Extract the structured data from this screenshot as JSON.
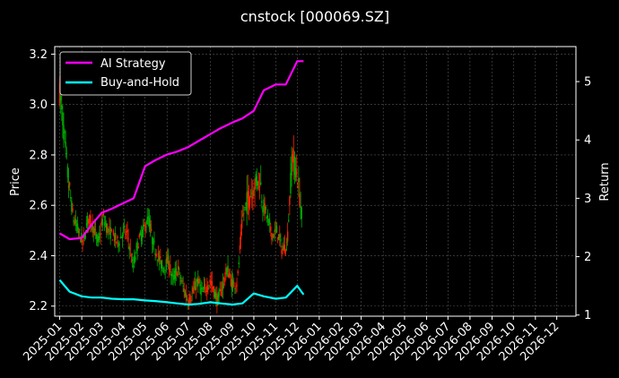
{
  "chart_data": {
    "type": "line",
    "title": "cnstock [000069.SZ]",
    "ylabel_left": "Price",
    "ylabel_right": "Return",
    "ylim_left": [
      2.16,
      3.23
    ],
    "ylim_right": [
      0.98,
      5.6
    ],
    "yticks_left": [
      "2.2",
      "2.4",
      "2.6",
      "2.8",
      "3.0",
      "3.2"
    ],
    "yticks_right": [
      "1",
      "2",
      "3",
      "4",
      "5"
    ],
    "xticks": [
      "2025-01",
      "2025-02",
      "2025-03",
      "2025-04",
      "2025-05",
      "2025-06",
      "2025-07",
      "2025-08",
      "2025-09",
      "2025-10",
      "2025-11",
      "2025-12",
      "2026-01",
      "2026-02",
      "2026-03",
      "2026-04",
      "2026-05",
      "2026-06",
      "2026-07",
      "2026-08",
      "2026-09",
      "2026-10",
      "2026-11",
      "2026-12"
    ],
    "grid": true,
    "legend_position": "top-left",
    "colors": {
      "ai": "#ff00ff",
      "bh": "#00ffff",
      "up": "#ff2200",
      "down": "#00aa00",
      "grid": "#555555"
    },
    "price_series": {
      "name": "Price (candlestick)",
      "x": [
        "2025-01-01",
        "2025-01-06",
        "2025-01-13",
        "2025-01-20",
        "2025-02-03",
        "2025-02-10",
        "2025-02-17",
        "2025-02-24",
        "2025-03-03",
        "2025-03-10",
        "2025-03-17",
        "2025-03-24",
        "2025-04-01",
        "2025-04-07",
        "2025-04-14",
        "2025-04-21",
        "2025-05-06",
        "2025-05-12",
        "2025-05-19",
        "2025-05-26",
        "2025-06-03",
        "2025-06-09",
        "2025-06-16",
        "2025-06-23",
        "2025-07-01",
        "2025-07-07",
        "2025-07-14",
        "2025-07-21",
        "2025-08-01",
        "2025-08-11",
        "2025-08-18",
        "2025-08-25",
        "2025-09-01",
        "2025-09-08",
        "2025-09-15",
        "2025-09-22",
        "2025-10-09",
        "2025-10-13",
        "2025-10-20",
        "2025-10-27",
        "2025-11-03",
        "2025-11-10",
        "2025-11-17",
        "2025-11-24",
        "2025-12-01",
        "2025-12-08"
      ],
      "values": [
        3.05,
        2.92,
        2.7,
        2.55,
        2.45,
        2.55,
        2.52,
        2.45,
        2.55,
        2.5,
        2.48,
        2.45,
        2.5,
        2.48,
        2.35,
        2.45,
        2.55,
        2.45,
        2.4,
        2.35,
        2.38,
        2.3,
        2.35,
        2.28,
        2.22,
        2.25,
        2.3,
        2.25,
        2.3,
        2.22,
        2.28,
        2.35,
        2.28,
        2.3,
        2.55,
        2.62,
        2.72,
        2.62,
        2.55,
        2.48,
        2.5,
        2.42,
        2.45,
        2.8,
        2.72,
        2.55
      ]
    },
    "series": [
      {
        "name": "AI Strategy",
        "x": [
          "2025-01-01",
          "2025-01-15",
          "2025-02-01",
          "2025-02-15",
          "2025-03-01",
          "2025-03-15",
          "2025-04-01",
          "2025-04-15",
          "2025-05-01",
          "2025-05-15",
          "2025-06-01",
          "2025-06-15",
          "2025-07-01",
          "2025-07-15",
          "2025-08-01",
          "2025-08-15",
          "2025-09-01",
          "2025-09-15",
          "2025-10-01",
          "2025-10-15",
          "2025-11-01",
          "2025-11-15",
          "2025-12-01",
          "2025-12-10"
        ],
        "values": [
          2.4,
          2.3,
          2.32,
          2.55,
          2.75,
          2.82,
          2.92,
          3.0,
          3.55,
          3.65,
          3.75,
          3.8,
          3.88,
          3.98,
          4.1,
          4.2,
          4.3,
          4.37,
          4.5,
          4.85,
          4.95,
          4.95,
          5.35,
          5.35
        ]
      },
      {
        "name": "Buy-and-Hold",
        "x": [
          "2025-01-01",
          "2025-01-15",
          "2025-02-01",
          "2025-02-15",
          "2025-03-01",
          "2025-03-15",
          "2025-04-01",
          "2025-04-15",
          "2025-05-01",
          "2025-05-15",
          "2025-06-01",
          "2025-06-15",
          "2025-07-01",
          "2025-07-15",
          "2025-08-01",
          "2025-08-15",
          "2025-09-01",
          "2025-09-15",
          "2025-10-01",
          "2025-10-15",
          "2025-11-01",
          "2025-11-15",
          "2025-12-01",
          "2025-12-10"
        ],
        "values": [
          1.6,
          1.4,
          1.32,
          1.3,
          1.3,
          1.28,
          1.27,
          1.27,
          1.25,
          1.24,
          1.22,
          1.2,
          1.18,
          1.19,
          1.22,
          1.2,
          1.18,
          1.2,
          1.37,
          1.32,
          1.28,
          1.3,
          1.5,
          1.35
        ]
      }
    ]
  }
}
